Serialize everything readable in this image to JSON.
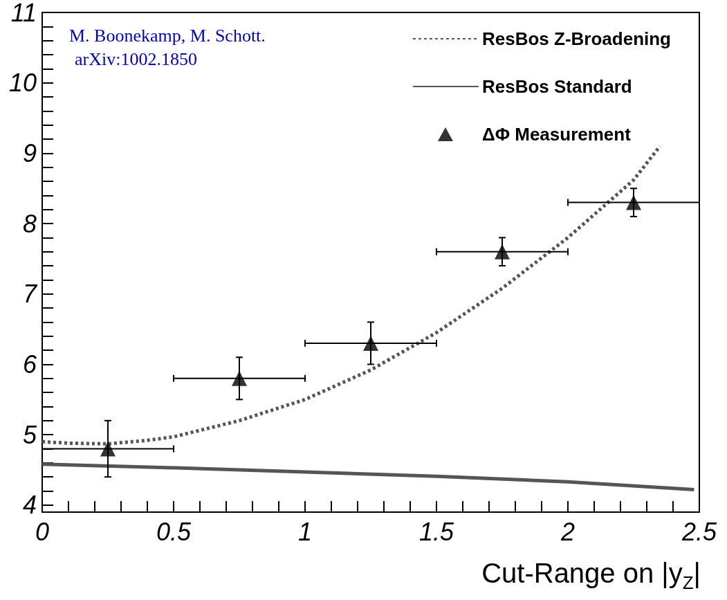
{
  "chart_data": {
    "type": "line",
    "xlabel": "Cut-Range on |y$_{Z}$|",
    "annotations": [
      "M. Boonekamp, M. Schott.",
      "arXiv:1002.1850"
    ],
    "xlim": [
      0,
      2.5
    ],
    "xticks": [
      0,
      {
        "value": 0.1,
        "label": null
      },
      {
        "value": 0.2,
        "label": null
      },
      {
        "value": 0.3,
        "label": null
      },
      {
        "value": 0.4,
        "label": null
      },
      0.5,
      {
        "value": 0.6,
        "label": null
      },
      {
        "value": 0.7,
        "label": null
      },
      {
        "value": 0.8,
        "label": null
      },
      {
        "value": 0.9,
        "label": null
      },
      1,
      {
        "value": 1.1,
        "label": null
      },
      {
        "value": 1.2,
        "label": null
      },
      {
        "value": 1.3,
        "label": null
      },
      {
        "value": 1.4,
        "label": null
      },
      1.5,
      {
        "value": 1.6,
        "label": null
      },
      {
        "value": 1.7,
        "label": null
      },
      {
        "value": 1.8,
        "label": null
      },
      {
        "value": 1.9,
        "label": null
      },
      2,
      {
        "value": 2.1,
        "label": null
      },
      {
        "value": 2.2,
        "label": null
      },
      {
        "value": 2.3,
        "label": null
      },
      {
        "value": 2.4,
        "label": null
      },
      2.5
    ],
    "ylim": [
      3.9,
      11
    ],
    "yticks": [
      4,
      {
        "value": 4.2,
        "label": null
      },
      {
        "value": 4.4,
        "label": null
      },
      {
        "value": 4.6,
        "label": null
      },
      {
        "value": 4.8,
        "label": null
      },
      5,
      {
        "value": 5.2,
        "label": null
      },
      {
        "value": 5.4,
        "label": null
      },
      {
        "value": 5.6,
        "label": null
      },
      {
        "value": 5.8,
        "label": null
      },
      6,
      {
        "value": 6.2,
        "label": null
      },
      {
        "value": 6.4,
        "label": null
      },
      {
        "value": 6.6,
        "label": null
      },
      {
        "value": 6.8,
        "label": null
      },
      7,
      {
        "value": 7.2,
        "label": null
      },
      {
        "value": 7.4,
        "label": null
      },
      {
        "value": 7.6,
        "label": null
      },
      {
        "value": 7.8,
        "label": null
      },
      8,
      {
        "value": 8.2,
        "label": null
      },
      {
        "value": 8.4,
        "label": null
      },
      {
        "value": 8.6,
        "label": null
      },
      {
        "value": 8.8,
        "label": null
      },
      9,
      {
        "value": 9.2,
        "label": null
      },
      {
        "value": 9.4,
        "label": null
      },
      {
        "value": 9.6,
        "label": null
      },
      {
        "value": 9.8,
        "label": null
      },
      10,
      {
        "value": 10.2,
        "label": null
      },
      {
        "value": 10.4,
        "label": null
      },
      {
        "value": 10.6,
        "label": null
      },
      {
        "value": 10.8,
        "label": null
      },
      11
    ],
    "grid": false,
    "legend": "top right",
    "series": [
      {
        "name": "ResBos Z-Broadening",
        "type": "line",
        "color": "#555555",
        "line_style": "dotted",
        "marker": "none",
        "x": [
          0,
          0.1,
          0.25,
          0.4,
          0.5,
          0.75,
          1.0,
          1.25,
          1.5,
          1.75,
          2.0,
          2.25,
          2.35
        ],
        "values": [
          4.9,
          4.88,
          4.87,
          4.92,
          4.97,
          5.2,
          5.5,
          5.92,
          6.45,
          7.08,
          7.8,
          8.62,
          9.1
        ]
      },
      {
        "name": "ResBos Standard",
        "type": "line",
        "color": "#555555",
        "line_style": "solid",
        "marker": "none",
        "x": [
          0,
          0.5,
          1.0,
          1.5,
          2.0,
          2.48
        ],
        "values": [
          4.58,
          4.53,
          4.47,
          4.41,
          4.33,
          4.22
        ]
      },
      {
        "name": "ΔΦ Measurement",
        "type": "scatter",
        "color": "#000000",
        "marker": "triangle",
        "x": [
          0.25,
          0.75,
          1.25,
          1.75,
          2.25
        ],
        "values": [
          4.8,
          5.8,
          6.3,
          7.6,
          8.3
        ],
        "errors": [
          0.4,
          0.3,
          0.3,
          0.2,
          0.2
        ],
        "xerrors": [
          0.25,
          0.25,
          0.25,
          0.25,
          0.25
        ]
      }
    ]
  }
}
